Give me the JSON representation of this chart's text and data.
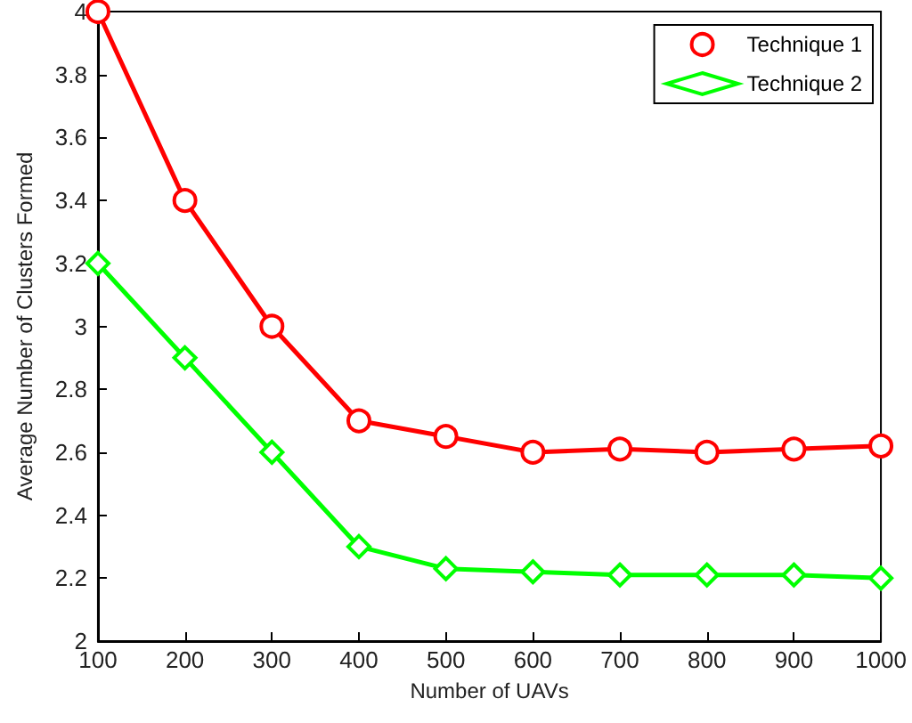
{
  "chart_data": {
    "type": "line",
    "xlabel": "Number of UAVs",
    "ylabel": "Average Number of Clusters Formed",
    "x": [
      100,
      200,
      300,
      400,
      500,
      600,
      700,
      800,
      900,
      1000
    ],
    "series": [
      {
        "name": "Technique 1",
        "color": "#ff0000",
        "marker": "circle",
        "values": [
          4,
          3.4,
          3,
          2.7,
          2.65,
          2.6,
          2.61,
          2.6,
          2.61,
          2.62
        ]
      },
      {
        "name": "Technique 2",
        "color": "#00ff00",
        "marker": "diamond",
        "values": [
          3.2,
          2.9,
          2.6,
          2.3,
          2.23,
          2.22,
          2.21,
          2.21,
          2.21,
          2.2
        ]
      }
    ],
    "xlim": [
      100,
      1000
    ],
    "xticks": [
      100,
      200,
      300,
      400,
      500,
      600,
      700,
      800,
      900,
      1000
    ],
    "ylim": [
      2,
      4
    ],
    "yticks": [
      2,
      2.2,
      2.4,
      2.6,
      2.8,
      3,
      3.2,
      3.4,
      3.6,
      3.8,
      4
    ],
    "grid": false,
    "legend": "top right",
    "line_style": "solid"
  }
}
